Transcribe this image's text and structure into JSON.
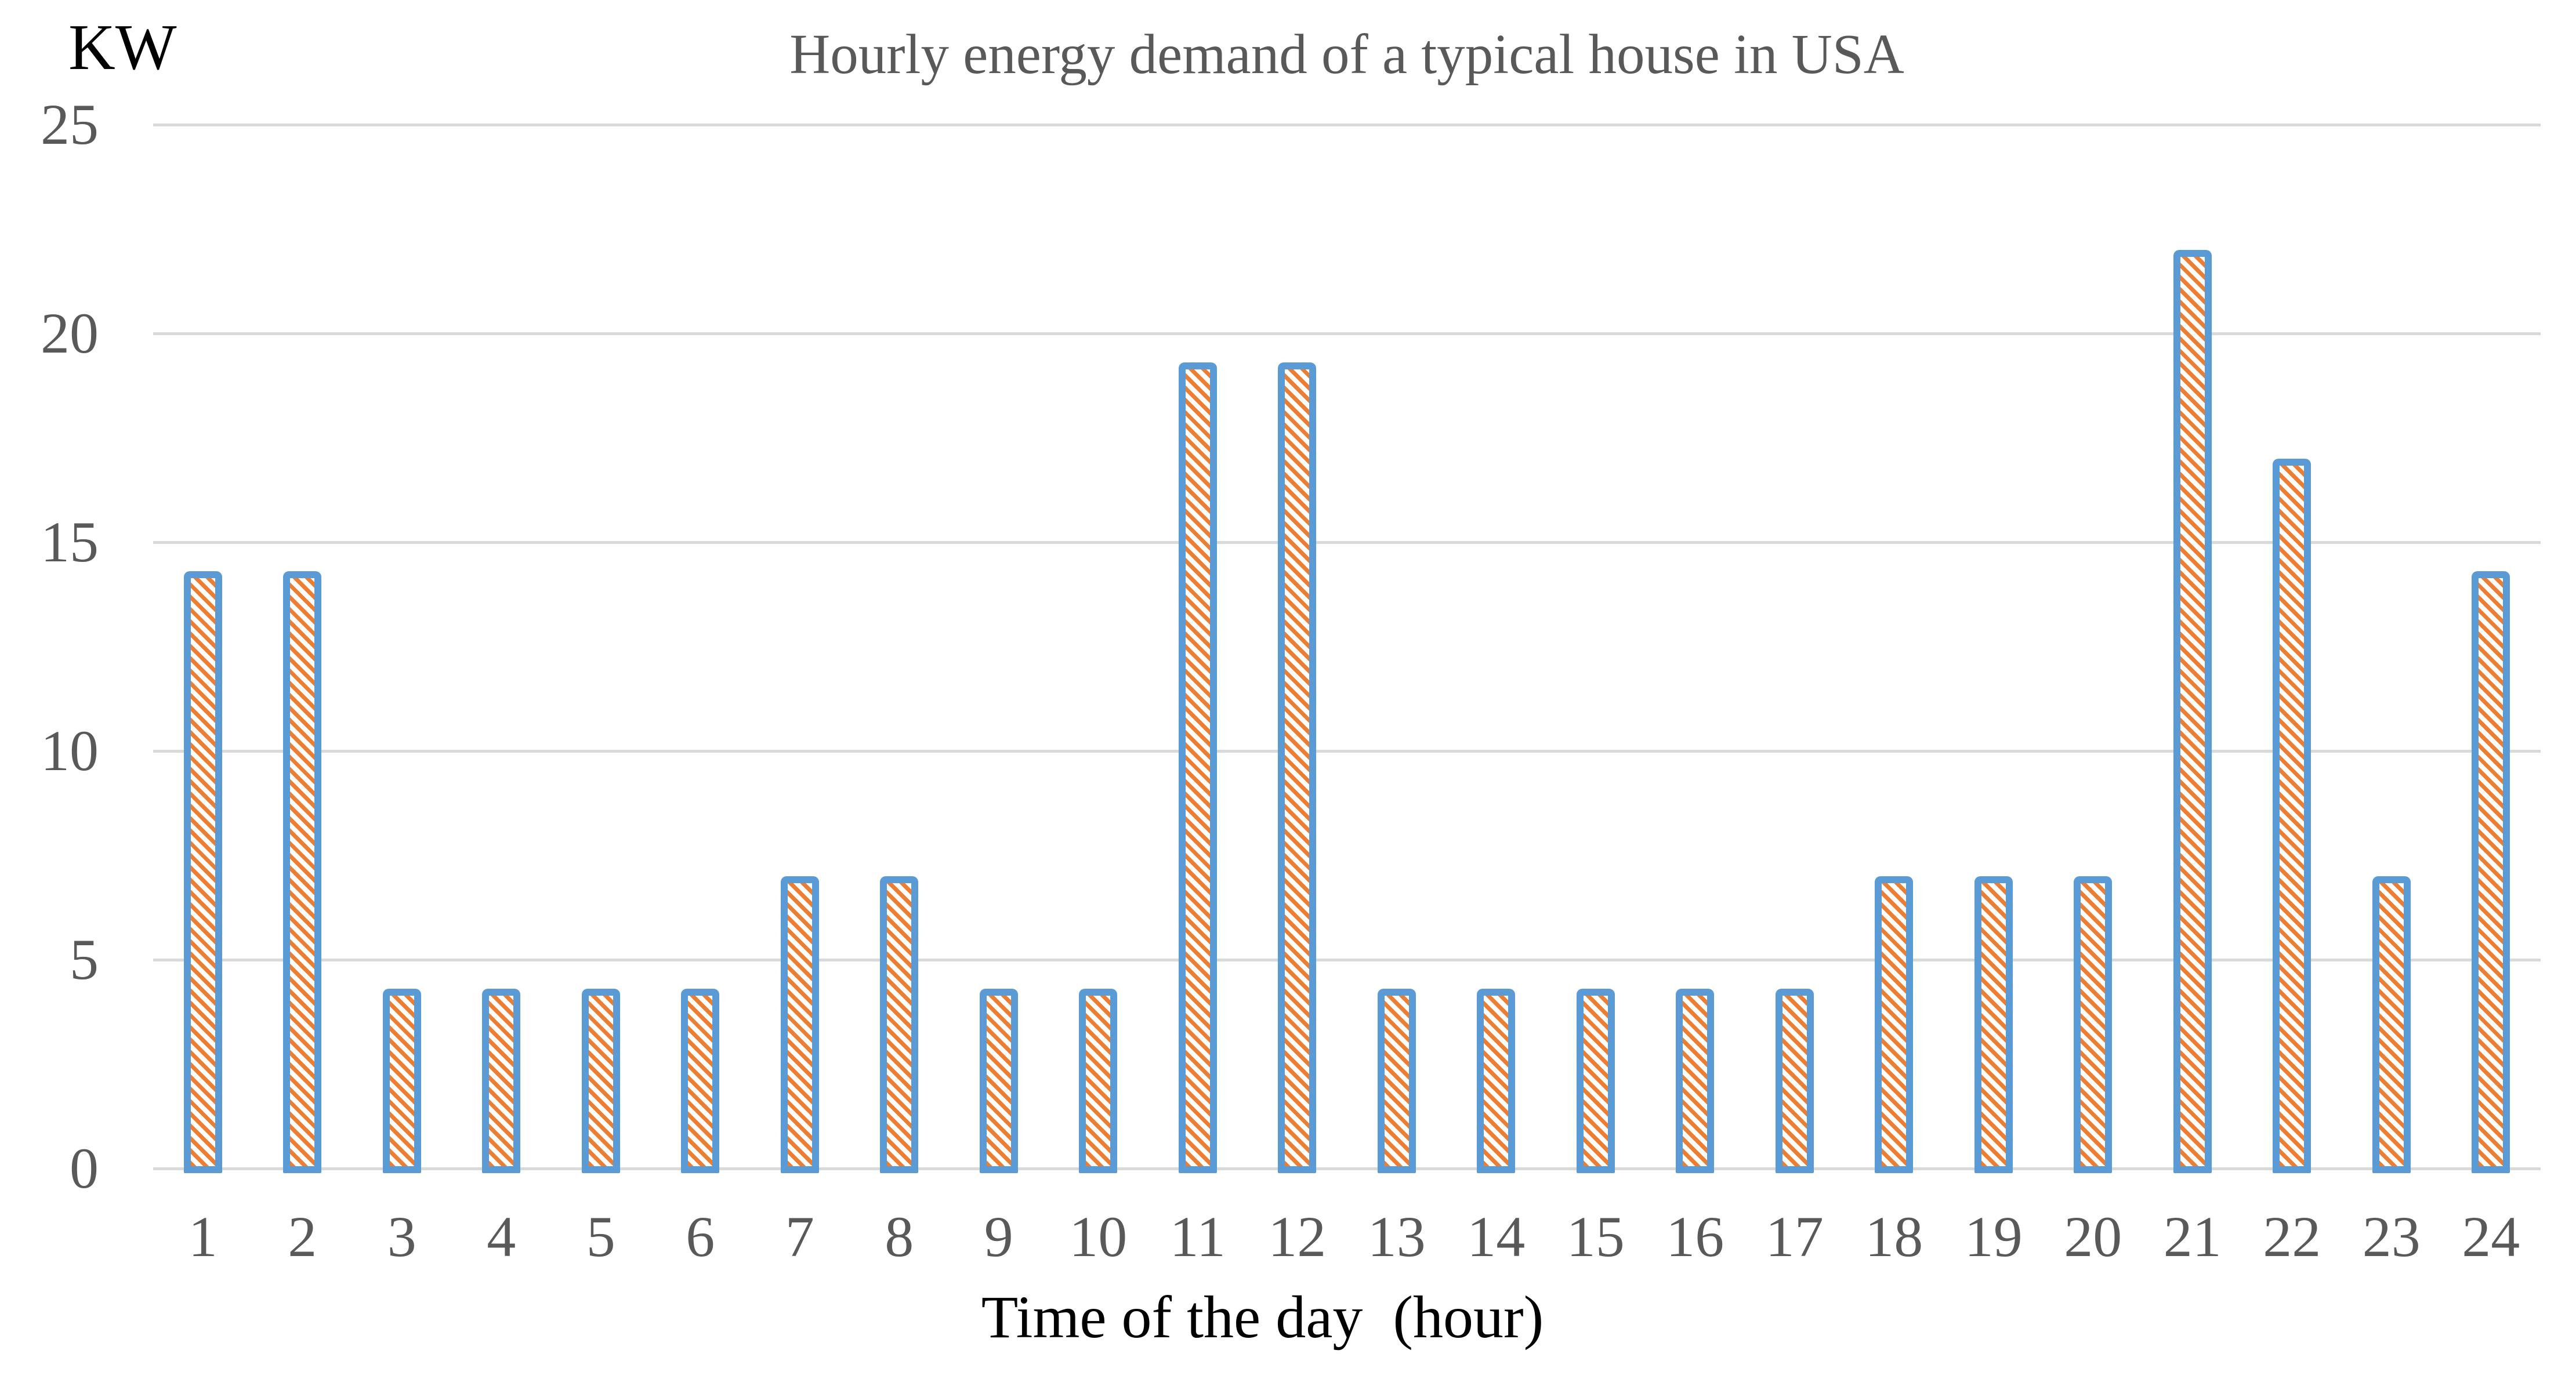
{
  "chart_data": {
    "type": "bar",
    "title": "Hourly energy demand of a typical house in USA",
    "ylabel": "KW",
    "xlabel": "Time of the day  (hour)",
    "categories": [
      1,
      2,
      3,
      4,
      5,
      6,
      7,
      8,
      9,
      10,
      11,
      12,
      13,
      14,
      15,
      16,
      17,
      18,
      19,
      20,
      21,
      22,
      23,
      24
    ],
    "values": [
      14.3,
      14.3,
      4.3,
      4.3,
      4.3,
      4.3,
      7,
      7,
      4.3,
      4.3,
      19.3,
      19.3,
      4.3,
      4.3,
      4.3,
      4.3,
      4.3,
      7,
      7,
      7,
      22,
      17,
      7,
      14.3
    ],
    "ylim": [
      0,
      25
    ],
    "yticks": [
      0,
      5,
      10,
      15,
      20,
      25
    ],
    "grid": true,
    "legend": "none",
    "bar_hatch_style": "diagonal-up-stripes",
    "colors": {
      "bar_border": "#5B9BD5",
      "bar_hatch": "#ED7D31",
      "bar_fill": "#FFFFFF",
      "gridline": "#D9D9D9",
      "tick_label": "#595959",
      "title": "#595959",
      "axis_title": "#000000",
      "background": "#FFFFFF"
    }
  }
}
